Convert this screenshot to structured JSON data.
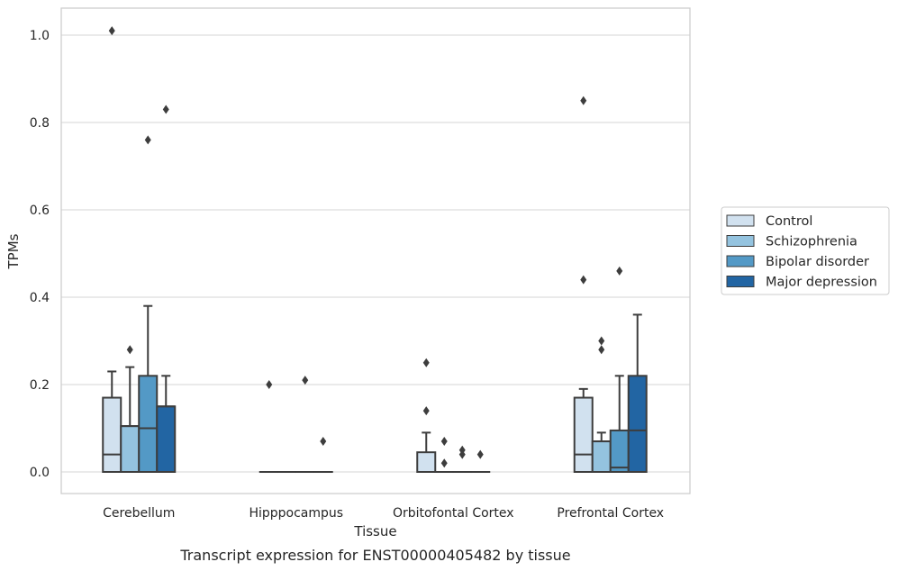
{
  "caption": "Transcript expression for ENST00000405482 by tissue",
  "chart_data": {
    "type": "box",
    "xlabel": "Tissue",
    "ylabel": "TPMs",
    "ylim": [
      -0.05,
      1.06
    ],
    "yticks": [
      0.0,
      0.2,
      0.4,
      0.6,
      0.8,
      1.0
    ],
    "ytick_labels": [
      "0.0",
      "0.2",
      "0.4",
      "0.6",
      "0.8",
      "1.0"
    ],
    "grid": "horizontal",
    "legend_position": "right",
    "categories": [
      "Cerebellum",
      "Hipppocampus",
      "Orbitofontal Cortex",
      "Prefrontal Cortex"
    ],
    "series": [
      {
        "name": "Control",
        "color": "#d1e1ef",
        "boxes": [
          {
            "whisker_low": 0.0,
            "q1": 0.0,
            "median": 0.04,
            "q3": 0.17,
            "whisker_high": 0.23,
            "outliers": [
              1.01
            ]
          },
          {
            "whisker_low": 0.0,
            "q1": 0.0,
            "median": 0.0,
            "q3": 0.0,
            "whisker_high": 0.0,
            "outliers": [
              0.2
            ]
          },
          {
            "whisker_low": 0.0,
            "q1": 0.0,
            "median": 0.0,
            "q3": 0.045,
            "whisker_high": 0.09,
            "outliers": [
              0.25,
              0.14
            ]
          },
          {
            "whisker_low": 0.0,
            "q1": 0.0,
            "median": 0.04,
            "q3": 0.17,
            "whisker_high": 0.19,
            "outliers": [
              0.85,
              0.44
            ]
          }
        ]
      },
      {
        "name": "Schizophrenia",
        "color": "#94c3df",
        "boxes": [
          {
            "whisker_low": 0.0,
            "q1": 0.0,
            "median": 0.105,
            "q3": 0.105,
            "whisker_high": 0.24,
            "outliers": [
              0.28
            ]
          },
          {
            "whisker_low": 0.0,
            "q1": 0.0,
            "median": 0.0,
            "q3": 0.0,
            "whisker_high": 0.0,
            "outliers": []
          },
          {
            "whisker_low": 0.0,
            "q1": 0.0,
            "median": 0.0,
            "q3": 0.0,
            "whisker_high": 0.0,
            "outliers": [
              0.07,
              0.02
            ]
          },
          {
            "whisker_low": 0.0,
            "q1": 0.0,
            "median": 0.07,
            "q3": 0.07,
            "whisker_high": 0.09,
            "outliers": [
              0.3,
              0.28
            ]
          }
        ]
      },
      {
        "name": "Bipolar disorder",
        "color": "#5399c6",
        "boxes": [
          {
            "whisker_low": 0.0,
            "q1": 0.0,
            "median": 0.1,
            "q3": 0.22,
            "whisker_high": 0.38,
            "outliers": [
              0.76
            ]
          },
          {
            "whisker_low": 0.0,
            "q1": 0.0,
            "median": 0.0,
            "q3": 0.0,
            "whisker_high": 0.0,
            "outliers": [
              0.21
            ]
          },
          {
            "whisker_low": 0.0,
            "q1": 0.0,
            "median": 0.0,
            "q3": 0.0,
            "whisker_high": 0.0,
            "outliers": [
              0.05,
              0.04
            ]
          },
          {
            "whisker_low": 0.0,
            "q1": 0.0,
            "median": 0.01,
            "q3": 0.095,
            "whisker_high": 0.22,
            "outliers": [
              0.46
            ]
          }
        ]
      },
      {
        "name": "Major depression",
        "color": "#2265a3",
        "boxes": [
          {
            "whisker_low": 0.0,
            "q1": 0.0,
            "median": 0.15,
            "q3": 0.15,
            "whisker_high": 0.22,
            "outliers": [
              0.83
            ]
          },
          {
            "whisker_low": 0.0,
            "q1": 0.0,
            "median": 0.0,
            "q3": 0.0,
            "whisker_high": 0.0,
            "outliers": [
              0.07
            ]
          },
          {
            "whisker_low": 0.0,
            "q1": 0.0,
            "median": 0.0,
            "q3": 0.0,
            "whisker_high": 0.0,
            "outliers": [
              0.04
            ]
          },
          {
            "whisker_low": 0.0,
            "q1": 0.0,
            "median": 0.095,
            "q3": 0.22,
            "whisker_high": 0.36,
            "outliers": []
          }
        ]
      }
    ]
  }
}
